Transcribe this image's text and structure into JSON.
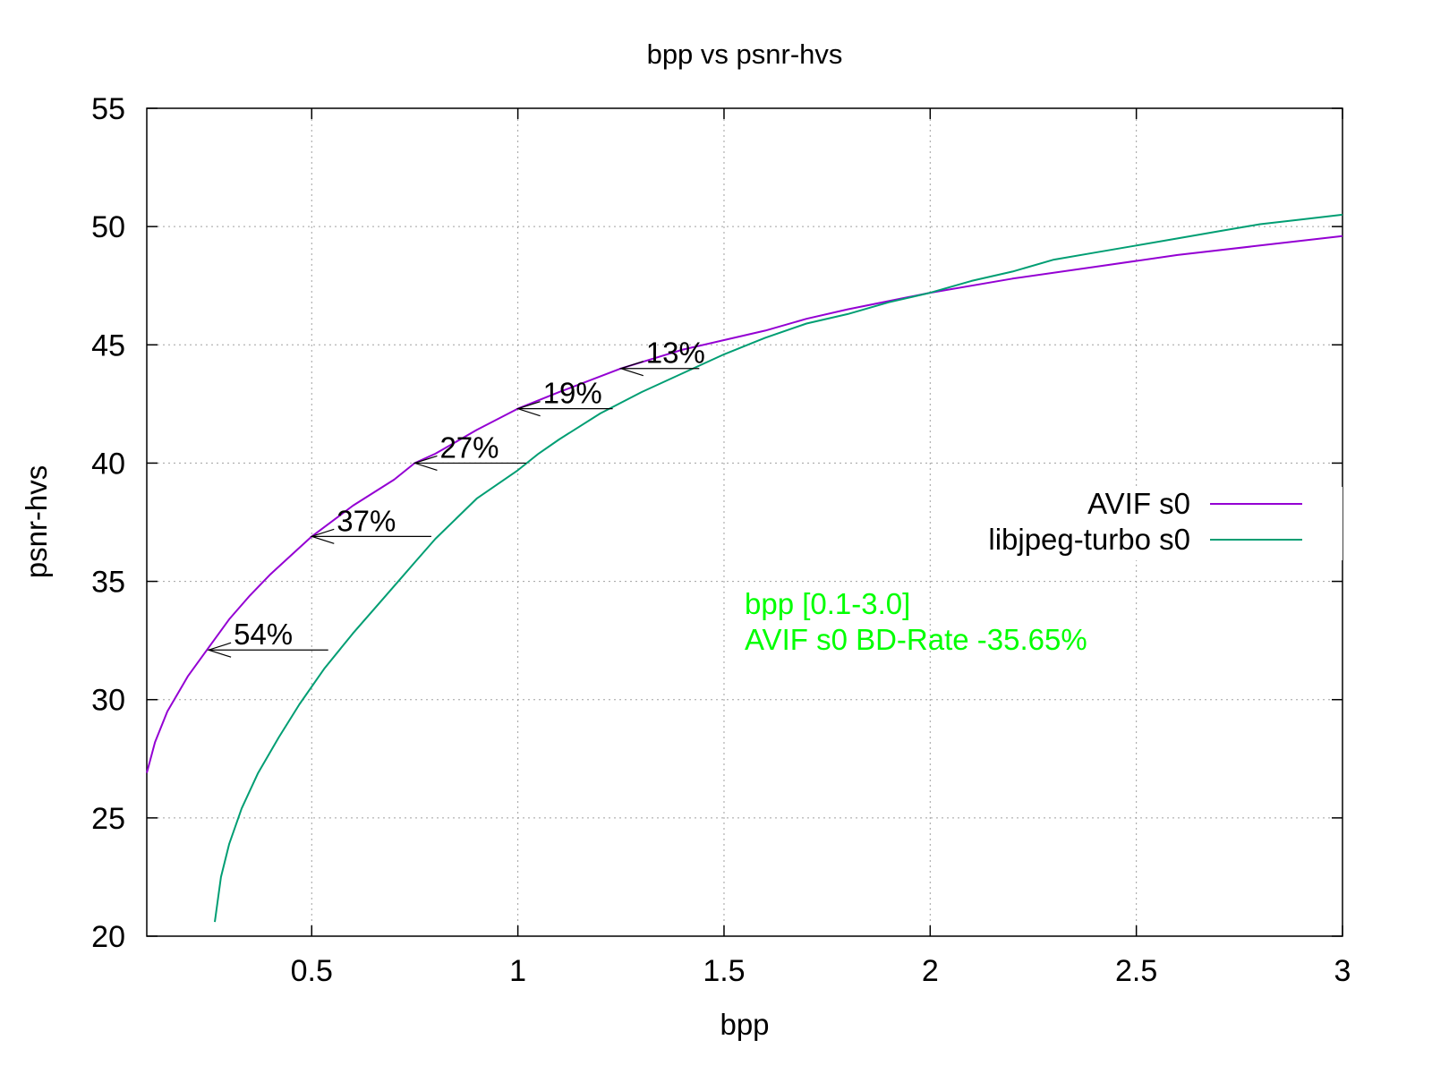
{
  "chart_data": {
    "type": "line",
    "title": "bpp vs psnr-hvs",
    "xlabel": "bpp",
    "ylabel": "psnr-hvs",
    "xlim": [
      0.1,
      3.0
    ],
    "ylim": [
      20,
      55
    ],
    "xticks": [
      0.5,
      1,
      1.5,
      2,
      2.5,
      3
    ],
    "xtick_labels": [
      "0.5",
      "1",
      "1.5",
      "2",
      "2.5",
      "3"
    ],
    "yticks": [
      20,
      25,
      30,
      35,
      40,
      45,
      50,
      55
    ],
    "ytick_labels": [
      "20",
      "25",
      "30",
      "35",
      "40",
      "45",
      "50",
      "55"
    ],
    "grid": true,
    "legend_position": "right",
    "series": [
      {
        "name": "AVIF s0",
        "color": "#9400d3",
        "points": [
          [
            0.1,
            26.9
          ],
          [
            0.12,
            28.2
          ],
          [
            0.15,
            29.5
          ],
          [
            0.2,
            31.0
          ],
          [
            0.25,
            32.2
          ],
          [
            0.3,
            33.4
          ],
          [
            0.35,
            34.4
          ],
          [
            0.4,
            35.3
          ],
          [
            0.45,
            36.1
          ],
          [
            0.5,
            36.9
          ],
          [
            0.6,
            38.2
          ],
          [
            0.7,
            39.3
          ],
          [
            0.75,
            40.0
          ],
          [
            0.8,
            40.4
          ],
          [
            0.9,
            41.4
          ],
          [
            1.0,
            42.3
          ],
          [
            1.1,
            43.0
          ],
          [
            1.25,
            44.0
          ],
          [
            1.4,
            44.8
          ],
          [
            1.5,
            45.2
          ],
          [
            1.6,
            45.6
          ],
          [
            1.7,
            46.1
          ],
          [
            1.8,
            46.5
          ],
          [
            2.0,
            47.2
          ],
          [
            2.2,
            47.8
          ],
          [
            2.4,
            48.3
          ],
          [
            2.6,
            48.8
          ],
          [
            2.8,
            49.2
          ],
          [
            3.0,
            49.6
          ]
        ]
      },
      {
        "name": "libjpeg-turbo s0",
        "color": "#009e73",
        "points": [
          [
            0.265,
            20.6
          ],
          [
            0.28,
            22.5
          ],
          [
            0.3,
            23.9
          ],
          [
            0.33,
            25.4
          ],
          [
            0.37,
            26.9
          ],
          [
            0.42,
            28.4
          ],
          [
            0.47,
            29.8
          ],
          [
            0.53,
            31.3
          ],
          [
            0.6,
            32.8
          ],
          [
            0.67,
            34.2
          ],
          [
            0.75,
            35.8
          ],
          [
            0.8,
            36.8
          ],
          [
            0.9,
            38.5
          ],
          [
            1.0,
            39.7
          ],
          [
            1.05,
            40.4
          ],
          [
            1.1,
            41.0
          ],
          [
            1.2,
            42.1
          ],
          [
            1.3,
            43.0
          ],
          [
            1.4,
            43.8
          ],
          [
            1.5,
            44.6
          ],
          [
            1.6,
            45.3
          ],
          [
            1.7,
            45.9
          ],
          [
            1.8,
            46.3
          ],
          [
            1.9,
            46.8
          ],
          [
            2.0,
            47.2
          ],
          [
            2.1,
            47.7
          ],
          [
            2.2,
            48.1
          ],
          [
            2.3,
            48.6
          ],
          [
            2.4,
            48.9
          ],
          [
            2.5,
            49.2
          ],
          [
            2.6,
            49.5
          ],
          [
            2.7,
            49.8
          ],
          [
            2.8,
            50.1
          ],
          [
            2.9,
            50.3
          ],
          [
            3.0,
            50.5
          ]
        ]
      }
    ],
    "arrows": [
      {
        "label": "54%",
        "y": 32.1,
        "x_from": 0.54,
        "x_to": 0.25
      },
      {
        "label": "37%",
        "y": 36.9,
        "x_from": 0.79,
        "x_to": 0.5
      },
      {
        "label": "27%",
        "y": 40.0,
        "x_from": 1.02,
        "x_to": 0.75
      },
      {
        "label": "19%",
        "y": 42.3,
        "x_from": 1.23,
        "x_to": 1.0
      },
      {
        "label": "13%",
        "y": 44.0,
        "x_from": 1.44,
        "x_to": 1.25
      }
    ],
    "annotations": [
      {
        "text": "bpp [0.1-3.0]",
        "color": "#00ff00"
      },
      {
        "text": "AVIF s0 BD-Rate -35.65%",
        "color": "#00ff00"
      }
    ]
  }
}
